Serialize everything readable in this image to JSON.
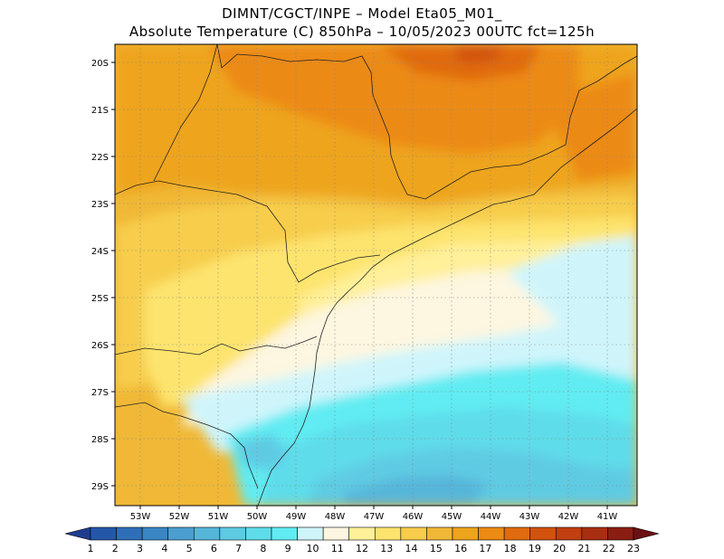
{
  "header": {
    "line1": "DIMNT/CGCT/INPE –  Model Eta05_M01_",
    "line2": "Absolute Temperature (C) 850hPa –  10/05/2023 00UTC fct=125h"
  },
  "axes": {
    "lat_labels": [
      "20S",
      "21S",
      "22S",
      "23S",
      "24S",
      "25S",
      "26S",
      "27S",
      "28S",
      "29S"
    ],
    "lon_labels": [
      "53W",
      "52W",
      "51W",
      "50W",
      "49W",
      "48W",
      "47W",
      "46W",
      "45W",
      "44W",
      "43W",
      "42W",
      "41W"
    ]
  },
  "colorbar": {
    "labels": [
      "1",
      "2",
      "3",
      "4",
      "5",
      "6",
      "7",
      "8",
      "9",
      "10",
      "11",
      "12",
      "13",
      "14",
      "15",
      "16",
      "17",
      "18",
      "19",
      "20",
      "21",
      "22",
      "23"
    ],
    "colors": [
      "#1f3d8f",
      "#2457a8",
      "#2f6fb8",
      "#3a86c4",
      "#4a9fd0",
      "#56b6da",
      "#5ecbe3",
      "#5fdcea",
      "#60ecf2",
      "#cff5fb",
      "#fdf6e0",
      "#fff09a",
      "#fde46e",
      "#f7cd4b",
      "#f0b836",
      "#eea41c",
      "#ec8a14",
      "#e06b10",
      "#d2520e",
      "#c13f10",
      "#a82e12",
      "#8a1e12",
      "#6b0f12"
    ]
  }
}
